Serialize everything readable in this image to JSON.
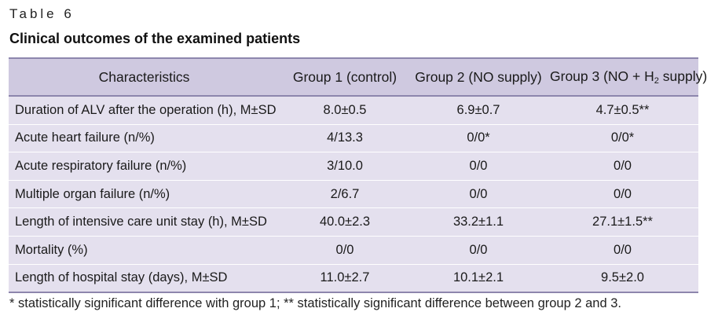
{
  "table_label": "Table 6",
  "title": "Clinical outcomes of the examined patients",
  "table": {
    "headers": {
      "characteristics": "Characteristics",
      "group1": "Group 1 (control)",
      "group2": "Group 2 (NO supply)",
      "group3_prefix": "Group 3 (NO + H",
      "group3_sub": "2",
      "group3_suffix": " supply)"
    },
    "rows": [
      {
        "label": "Duration of ALV after the operation (h), M±SD",
        "g1": "8.0±0.5",
        "g2": "6.9±0.7",
        "g3": "4.7±0.5**"
      },
      {
        "label": "Acute heart failure (n/%)",
        "g1": "4/13.3",
        "g2": "0/0*",
        "g3": "0/0*"
      },
      {
        "label": "Acute respiratory failure (n/%)",
        "g1": "3/10.0",
        "g2": "0/0",
        "g3": "0/0"
      },
      {
        "label": "Multiple organ failure (n/%)",
        "g1": "2/6.7",
        "g2": "0/0",
        "g3": "0/0"
      },
      {
        "label": "Length of intensive care unit stay (h), M±SD",
        "g1": "40.0±2.3",
        "g2": "33.2±1.1",
        "g3": "27.1±1.5**"
      },
      {
        "label": "Mortality (%)",
        "g1": "0/0",
        "g2": "0/0",
        "g3": "0/0"
      },
      {
        "label": "Length of hospital stay (days), M±SD",
        "g1": "11.0±2.7",
        "g2": "10.1±2.1",
        "g3": "9.5±2.0"
      }
    ]
  },
  "footnote": "* statistically significant difference with group 1; ** statistically significant difference between group 2 and 3."
}
